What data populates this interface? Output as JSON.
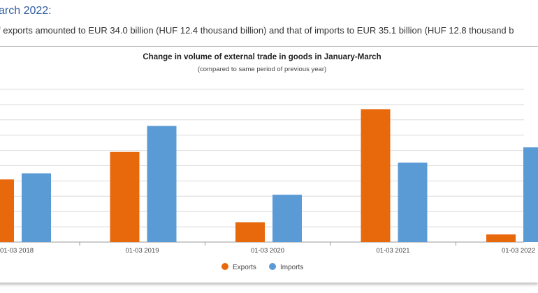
{
  "page": {
    "heading": "arch 2022:",
    "paragraph": "f exports amounted to EUR 34.0 billion (HUF 12.4 thousand billion) and that of imports to EUR 35.1 billion (HUF 12.8 thousand b"
  },
  "chart_data": {
    "type": "bar",
    "title": "Change in volume of external trade in goods in January-March",
    "subtitle": "(compared to same period of previous year)",
    "categories": [
      "01-03 2018",
      "01-03 2019",
      "01-03 2020",
      "01-03 2021",
      "01-03 2022"
    ],
    "series": [
      {
        "name": "Exports",
        "color": "#e8680c",
        "values": [
          4.1,
          5.9,
          1.3,
          8.7,
          0.5
        ]
      },
      {
        "name": "Imports",
        "color": "#5b9bd5",
        "values": [
          4.5,
          7.6,
          3.1,
          5.2,
          6.2
        ]
      }
    ],
    "ylim": [
      0,
      10
    ],
    "grid": true,
    "legend": "bottom",
    "colors": {
      "heading": "#2f5d9e"
    }
  }
}
